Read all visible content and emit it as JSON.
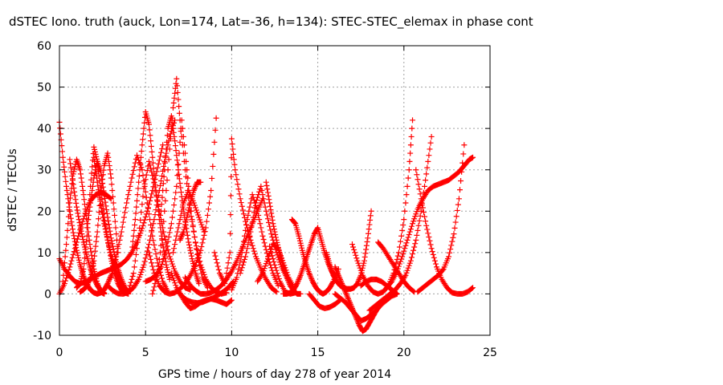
{
  "chart_data": {
    "type": "scatter",
    "title": "dSTEC Iono. truth (auck, Lon=174, Lat=-36, h=134): STEC-STEC_elemax in phase cont",
    "xlabel": "GPS time / hours of day 278 of year 2014",
    "ylabel": "dSTEC  / TECUs",
    "xlim": [
      0,
      25
    ],
    "ylim": [
      -10,
      60
    ],
    "xticks": [
      "0",
      "5",
      "10",
      "15",
      "20",
      "25"
    ],
    "yticks": [
      "-10",
      "0",
      "10",
      "20",
      "30",
      "40",
      "50",
      "60"
    ],
    "grid": true,
    "marker": "plus",
    "color": "#ff0000",
    "series": [
      {
        "x": [
          0.0,
          0.2,
          0.4,
          0.6,
          0.8,
          1.0,
          1.2,
          1.4,
          1.6,
          1.8,
          2.0,
          2.2,
          2.4,
          2.6,
          2.8,
          3.0
        ],
        "values": [
          41.5,
          33.0,
          26.0,
          20.0,
          14.8,
          10.5,
          7.0,
          4.3,
          2.3,
          1.0,
          0.3,
          0.0,
          0.3,
          1.0,
          2.5,
          4.5
        ]
      },
      {
        "x": [
          0.0,
          0.3,
          0.6,
          0.9,
          1.2,
          1.5,
          1.8,
          2.1,
          2.4,
          2.7,
          3.0,
          3.3,
          3.6,
          3.9,
          4.2,
          4.5,
          4.8,
          5.1,
          5.4,
          5.7,
          6.0
        ],
        "values": [
          8.5,
          6.0,
          4.3,
          3.0,
          2.5,
          2.8,
          3.5,
          4.3,
          5.0,
          5.5,
          6.0,
          6.5,
          7.2,
          8.3,
          10.0,
          12.5,
          15.8,
          20.0,
          25.0,
          30.5,
          36.0
        ]
      },
      {
        "x": [
          0.0,
          0.3,
          0.6,
          0.9,
          1.2,
          1.5,
          1.8,
          2.1,
          2.4,
          2.7,
          3.0
        ],
        "values": [
          0.0,
          2.5,
          6.5,
          11.0,
          15.5,
          19.5,
          22.5,
          24.0,
          24.5,
          24.0,
          23.0
        ]
      },
      {
        "x": [
          0.2,
          0.4,
          0.6,
          0.8,
          1.0,
          1.2,
          1.4,
          1.6,
          1.8,
          2.0,
          2.2,
          2.4,
          2.6
        ],
        "values": [
          3.0,
          12.0,
          22.0,
          29.0,
          32.5,
          30.0,
          24.0,
          17.0,
          11.0,
          6.0,
          2.5,
          0.5,
          0.0
        ]
      },
      {
        "x": [
          0.6,
          0.8,
          1.0,
          1.2,
          1.4,
          1.6,
          1.8,
          2.0,
          2.2,
          2.4,
          2.6
        ],
        "values": [
          32.5,
          26.5,
          21.0,
          16.5,
          12.5,
          9.0,
          6.0,
          3.8,
          2.0,
          0.8,
          0.2
        ]
      },
      {
        "x": [
          1.0,
          1.2,
          1.4,
          1.6,
          1.8,
          2.0,
          2.2,
          2.4,
          2.6,
          2.8,
          3.0,
          3.2,
          3.4,
          3.6,
          3.8,
          4.0
        ],
        "values": [
          1.5,
          2.5,
          6.0,
          14.0,
          26.0,
          35.5,
          32.0,
          25.0,
          18.5,
          13.0,
          8.5,
          5.0,
          2.5,
          1.0,
          0.3,
          0.0
        ]
      },
      {
        "x": [
          1.6,
          1.8,
          2.0,
          2.2,
          2.4,
          2.6,
          2.8,
          3.0,
          3.2,
          3.4,
          3.6,
          3.8,
          4.0
        ],
        "values": [
          16.0,
          22.0,
          28.0,
          32.0,
          29.5,
          24.0,
          18.5,
          13.5,
          9.5,
          6.0,
          3.5,
          1.5,
          0.5
        ]
      },
      {
        "x": [
          1.2,
          1.4,
          1.6,
          1.8,
          2.0,
          2.2,
          2.4,
          2.6,
          2.8,
          3.0,
          3.2,
          3.4
        ],
        "values": [
          0.5,
          1.0,
          2.0,
          4.0,
          8.0,
          15.0,
          24.5,
          31.0,
          34.0,
          28.0,
          19.0,
          10.0
        ]
      },
      {
        "x": [
          2.0,
          2.2,
          2.4,
          2.6,
          2.8,
          3.0,
          3.2,
          3.4,
          3.6,
          3.8,
          4.0
        ],
        "values": [
          33.0,
          27.0,
          21.5,
          17.0,
          13.0,
          9.5,
          6.5,
          4.2,
          2.4,
          1.0,
          0.3
        ]
      },
      {
        "x": [
          2.8,
          3.1,
          3.4,
          3.7,
          4.0,
          4.3,
          4.6,
          4.9,
          5.2,
          5.5,
          5.8,
          6.1,
          6.4,
          6.7
        ],
        "values": [
          2.0,
          0.8,
          0.1,
          0.0,
          0.4,
          1.5,
          3.5,
          7.0,
          12.0,
          18.0,
          25.0,
          32.0,
          38.0,
          42.0
        ]
      },
      {
        "x": [
          3.0,
          3.3,
          3.6,
          3.9,
          4.2,
          4.5,
          4.8,
          5.1,
          5.4,
          5.7,
          6.0,
          6.3
        ],
        "values": [
          4.0,
          9.0,
          15.0,
          22.0,
          28.0,
          33.5,
          30.0,
          22.0,
          14.0,
          7.5,
          3.0,
          0.5
        ]
      },
      {
        "x": [
          4.0,
          4.3,
          4.6,
          4.9,
          5.2,
          5.5,
          5.8,
          6.1,
          6.4,
          6.7,
          7.0,
          7.3,
          7.6
        ],
        "values": [
          0.5,
          5.0,
          14.0,
          25.5,
          32.0,
          27.0,
          20.0,
          14.0,
          9.0,
          5.5,
          3.0,
          1.5,
          1.0
        ]
      },
      {
        "x": [
          4.2,
          4.4,
          4.6,
          4.8,
          5.0,
          5.2,
          5.4,
          5.6,
          5.8,
          6.0,
          6.2,
          6.4
        ],
        "values": [
          10.0,
          18.0,
          27.0,
          36.0,
          44.0,
          41.0,
          33.0,
          25.0,
          18.0,
          12.0,
          7.0,
          3.5
        ]
      },
      {
        "x": [
          5.2,
          5.5,
          5.8,
          6.1,
          6.4,
          6.7,
          7.0,
          7.3,
          7.6,
          7.9,
          8.2,
          8.5,
          8.8,
          9.1
        ],
        "values": [
          10.0,
          5.0,
          2.0,
          0.5,
          0.0,
          0.3,
          1.2,
          2.5,
          4.5,
          7.0,
          10.5,
          16.0,
          25.0,
          42.5
        ]
      },
      {
        "x": [
          5.0,
          5.3,
          5.6,
          5.9,
          6.2,
          6.5,
          6.8,
          7.1,
          7.4,
          7.7,
          8.0,
          8.3,
          8.6
        ],
        "values": [
          3.0,
          3.5,
          4.5,
          6.5,
          10.5,
          17.0,
          26.0,
          42.0,
          30.0,
          18.0,
          9.5,
          4.0,
          1.5
        ]
      },
      {
        "x": [
          5.4,
          5.7,
          6.0,
          6.3,
          6.6,
          6.8,
          7.0,
          7.3,
          7.6,
          7.9,
          8.2,
          8.5,
          8.8,
          9.1,
          9.4,
          9.7
        ],
        "values": [
          0.0,
          5.0,
          15.0,
          30.0,
          45.0,
          52.0,
          42.0,
          30.0,
          20.0,
          12.5,
          7.0,
          3.5,
          1.5,
          0.5,
          0.0,
          0.3
        ]
      },
      {
        "x": [
          5.9,
          6.1,
          6.3,
          6.5,
          6.7,
          6.9,
          7.1,
          7.3,
          7.5,
          7.7,
          7.9,
          8.1
        ],
        "values": [
          20.0,
          30.0,
          40.0,
          43.0,
          37.0,
          30.0,
          23.5,
          17.5,
          12.5,
          8.5,
          5.0,
          2.5
        ]
      },
      {
        "x": [
          6.5,
          6.8,
          7.1,
          7.4,
          7.7,
          8.0,
          8.3,
          8.6,
          8.9,
          9.2,
          9.5,
          9.8,
          10.1
        ],
        "values": [
          5.0,
          1.5,
          -0.5,
          -1.5,
          -2.0,
          -2.2,
          -2.0,
          -1.5,
          -1.0,
          -0.3,
          0.5,
          1.5,
          3.0
        ]
      },
      {
        "x": [
          7.0,
          7.3,
          7.6,
          7.9,
          8.2,
          8.5,
          8.8,
          9.1,
          9.4,
          9.7,
          10.0
        ],
        "values": [
          0.0,
          -2.0,
          -3.5,
          -3.0,
          -2.0,
          -1.5,
          -1.2,
          -1.5,
          -2.0,
          -2.5,
          -1.5
        ]
      },
      {
        "x": [
          6.6,
          6.9,
          7.2,
          7.5,
          7.8,
          8.1,
          8.4
        ],
        "values": [
          10.0,
          16.0,
          22.0,
          25.0,
          22.0,
          18.5,
          15.0
        ]
      },
      {
        "x": [
          7.0,
          7.2,
          7.4,
          7.6,
          7.8,
          8.0,
          8.2
        ],
        "values": [
          13.0,
          15.0,
          18.5,
          22.0,
          25.0,
          27.0,
          27.0
        ]
      },
      {
        "x": [
          7.3,
          7.6,
          7.9,
          8.2,
          8.5,
          8.8,
          9.1,
          9.4,
          9.7,
          10.0,
          10.3,
          10.6,
          10.9,
          11.2,
          11.5,
          11.8
        ],
        "values": [
          4.0,
          2.0,
          0.8,
          0.0,
          0.0,
          0.3,
          1.0,
          2.0,
          3.5,
          5.5,
          8.0,
          11.0,
          14.0,
          17.0,
          20.0,
          23.0
        ]
      },
      {
        "x": [
          9.0,
          9.3,
          9.6,
          9.9,
          10.0,
          10.2,
          10.5,
          10.8,
          11.1,
          11.4,
          11.7,
          12.0,
          12.3,
          12.6
        ],
        "values": [
          10.0,
          5.0,
          2.5,
          10.0,
          37.5,
          30.0,
          23.0,
          17.5,
          13.0,
          9.0,
          6.0,
          3.5,
          1.5,
          0.5
        ]
      },
      {
        "x": [
          10.0,
          10.3,
          10.6,
          10.9,
          11.2,
          11.5,
          11.8,
          12.1,
          12.4,
          12.7
        ],
        "values": [
          1.0,
          4.0,
          10.0,
          18.0,
          24.0,
          20.0,
          14.0,
          9.0,
          5.0,
          2.0
        ]
      },
      {
        "x": [
          10.5,
          10.8,
          11.1,
          11.4,
          11.7,
          12.0,
          12.3,
          12.6,
          12.9,
          13.2
        ],
        "values": [
          5.0,
          9.0,
          15.0,
          22.0,
          26.0,
          20.0,
          14.5,
          10.0,
          6.5,
          4.0
        ]
      },
      {
        "x": [
          11.5,
          11.8,
          12.1,
          12.4,
          12.7,
          13.0,
          13.3,
          13.6
        ],
        "values": [
          3.0,
          5.0,
          8.5,
          12.0,
          11.0,
          7.5,
          4.0,
          1.5
        ]
      },
      {
        "x": [
          12.0,
          12.2,
          12.4,
          12.6,
          12.8,
          13.0,
          13.2,
          13.4,
          13.6,
          13.8,
          14.0
        ],
        "values": [
          27.0,
          22.0,
          17.0,
          13.0,
          9.5,
          6.5,
          4.0,
          2.0,
          0.8,
          0.0,
          0.0
        ]
      },
      {
        "x": [
          12.2,
          12.5,
          12.8,
          13.1,
          13.4,
          13.7
        ],
        "values": [
          11.5,
          7.0,
          3.0,
          0.5,
          0.0,
          0.3
        ]
      },
      {
        "x": [
          13.0,
          13.2,
          13.4,
          13.6,
          13.8,
          14.0,
          14.2,
          14.4,
          14.6,
          14.8,
          15.0,
          15.2,
          15.4,
          15.6,
          15.8,
          16.0
        ],
        "values": [
          0.0,
          0.0,
          0.3,
          1.0,
          2.5,
          4.5,
          7.0,
          9.5,
          12.0,
          14.5,
          16.0,
          13.0,
          10.0,
          7.5,
          5.5,
          4.0
        ]
      },
      {
        "x": [
          13.5,
          13.7,
          13.9,
          14.1,
          14.3,
          14.5,
          14.7,
          14.9,
          15.1,
          15.3,
          15.5,
          15.7,
          15.9,
          16.2
        ],
        "values": [
          18.0,
          17.0,
          14.0,
          10.5,
          7.5,
          5.0,
          3.0,
          1.5,
          0.5,
          0.0,
          0.5,
          1.5,
          3.0,
          6.0
        ]
      },
      {
        "x": [
          14.5,
          14.8,
          15.1,
          15.4,
          15.7,
          16.0,
          16.3
        ],
        "values": [
          0.0,
          -1.5,
          -3.0,
          -3.5,
          -3.2,
          -2.5,
          -1.5
        ]
      },
      {
        "x": [
          15.5,
          15.7,
          15.9,
          16.1,
          16.3,
          16.5,
          16.7,
          16.9,
          17.1,
          17.3,
          17.5,
          17.7,
          17.9,
          18.1
        ],
        "values": [
          10.0,
          7.0,
          4.5,
          3.0,
          2.0,
          1.5,
          1.2,
          1.2,
          1.5,
          2.5,
          4.5,
          8.0,
          13.5,
          20.0
        ]
      },
      {
        "x": [
          16.0,
          16.2,
          16.4,
          16.6,
          16.8,
          17.0,
          17.2,
          17.4,
          17.6,
          17.8,
          18.0,
          18.2,
          18.4
        ],
        "values": [
          6.5,
          4.5,
          2.5,
          0.5,
          -1.5,
          -3.5,
          -5.5,
          -7.5,
          -9.0,
          -8.5,
          -7.0,
          -5.5,
          -4.0
        ]
      },
      {
        "x": [
          16.0,
          16.3,
          16.6,
          16.9,
          17.2,
          17.5,
          17.8,
          18.1,
          18.4,
          18.7,
          19.0,
          19.3,
          19.6
        ],
        "values": [
          0.0,
          -1.0,
          -2.0,
          -3.5,
          -5.0,
          -6.5,
          -6.0,
          -5.0,
          -4.0,
          -2.5,
          -1.5,
          -0.5,
          0.0
        ]
      },
      {
        "x": [
          17.0,
          17.3,
          17.6,
          17.9,
          18.2,
          18.5,
          18.8,
          19.1,
          19.4,
          19.7,
          20.0,
          20.3,
          20.5
        ],
        "values": [
          12.0,
          8.0,
          4.5,
          2.0,
          0.5,
          0.0,
          0.5,
          2.0,
          5.0,
          10.0,
          18.0,
          30.0,
          42.0
        ]
      },
      {
        "x": [
          17.5,
          17.8,
          18.1,
          18.4,
          18.7,
          19.0,
          19.3,
          19.6
        ],
        "values": [
          2.0,
          3.0,
          3.5,
          3.5,
          3.0,
          2.0,
          1.0,
          0.0
        ]
      },
      {
        "x": [
          18.0,
          18.3,
          18.6,
          18.9,
          19.2,
          19.5,
          19.8,
          20.1,
          20.4,
          20.7,
          21.0,
          21.3,
          21.6
        ],
        "values": [
          -4.0,
          -3.0,
          -2.0,
          -1.0,
          0.0,
          1.0,
          2.5,
          4.5,
          8.0,
          13.0,
          20.0,
          29.0,
          38.0
        ]
      },
      {
        "x": [
          18.5,
          18.8,
          19.1,
          19.4,
          19.7,
          20.0,
          20.3,
          20.6
        ],
        "values": [
          12.5,
          11.0,
          9.0,
          7.0,
          5.0,
          3.0,
          1.5,
          0.5
        ]
      },
      {
        "x": [
          19.0,
          19.3,
          19.6,
          19.9,
          20.2,
          20.5,
          20.8,
          21.1,
          21.4,
          21.7,
          22.0,
          22.3,
          22.6,
          22.9,
          23.2,
          23.5,
          23.8,
          24.0
        ],
        "values": [
          1.5,
          3.0,
          5.5,
          9.0,
          13.0,
          17.0,
          20.5,
          23.0,
          25.0,
          26.0,
          26.5,
          27.0,
          27.5,
          28.5,
          29.5,
          31.0,
          32.5,
          33.0
        ]
      },
      {
        "x": [
          20.7,
          21.0,
          21.3,
          21.6,
          21.9,
          22.2,
          22.5,
          22.8,
          23.1,
          23.4,
          23.7,
          24.0
        ],
        "values": [
          30.0,
          23.0,
          16.5,
          11.0,
          6.5,
          3.5,
          1.5,
          0.3,
          0.0,
          0.0,
          0.5,
          1.5
        ]
      },
      {
        "x": [
          20.8,
          21.1,
          21.4,
          21.7,
          22.0,
          22.3,
          22.6,
          22.9,
          23.2,
          23.5
        ],
        "values": [
          0.5,
          1.5,
          2.5,
          3.5,
          4.5,
          6.0,
          9.0,
          14.5,
          23.0,
          36.0
        ]
      }
    ]
  }
}
